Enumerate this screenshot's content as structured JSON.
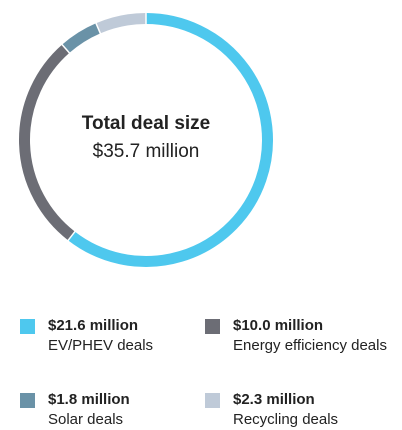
{
  "chart_data": {
    "type": "donut",
    "center_title": "Total deal size",
    "center_subtitle": "$35.7 million",
    "categories": [
      "EV/PHEV deals",
      "Energy efficiency deals",
      "Solar deals",
      "Recycling deals"
    ],
    "values": [
      21.6,
      10.0,
      1.8,
      2.3
    ],
    "value_labels": [
      "$21.6 million",
      "$10.0 million",
      "$1.8 million",
      "$2.3 million"
    ],
    "colors": [
      "#4ec8ee",
      "#6c6d75",
      "#6a92a7",
      "#bfcad8"
    ]
  }
}
